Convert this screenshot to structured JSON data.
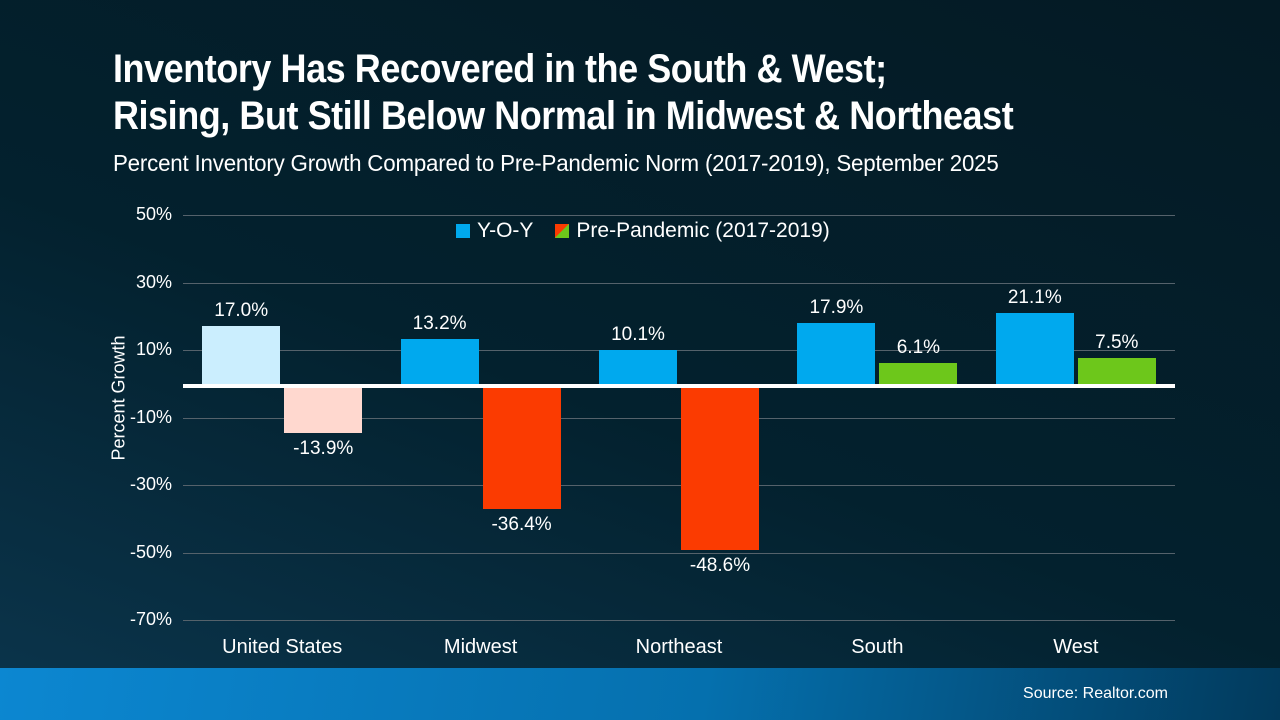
{
  "title": {
    "line1": "Inventory Has Recovered in the South & West;",
    "line2": "Rising, But Still Below Normal in Midwest & Northeast"
  },
  "subtitle": "Percent Inventory Growth Compared to Pre-Pandemic Norm (2017-2019), September 2025",
  "legend": [
    {
      "label": "Y-O-Y",
      "marker": "solid",
      "color": "#00a9ee"
    },
    {
      "label": "Pre-Pandemic (2017-2019)",
      "marker": "split",
      "color_top_left": "#fb3b01",
      "color_bottom_right": "#6dc71b"
    }
  ],
  "footer": {
    "source": "Source: Realtor.com"
  },
  "colors": {
    "background_top": "#041a24",
    "background_bottom": "#0d3a54",
    "gridline": "#55626b",
    "zero_line": "#ffffff",
    "footer_left": "#0c87d1",
    "footer_right": "#023a5c",
    "yoy_blue": "#00a9ee",
    "yoy_blue_muted": "#cbeefe",
    "prepandemic_red": "#fb3b01",
    "prepandemic_red_muted": "#ffd8cf",
    "prepandemic_green": "#6dc71b"
  },
  "chart_data": {
    "type": "bar",
    "title": "Inventory Has Recovered in the South & West; Rising, But Still Below Normal in Midwest & Northeast",
    "subtitle": "Percent Inventory Growth Compared to Pre-Pandemic Norm (2017-2019), September 2025",
    "categories": [
      "United States",
      "Midwest",
      "Northeast",
      "South",
      "West"
    ],
    "series": [
      {
        "name": "Y-O-Y",
        "values": [
          17.0,
          13.2,
          10.1,
          17.9,
          21.1
        ]
      },
      {
        "name": "Pre-Pandemic (2017-2019)",
        "values": [
          -13.9,
          -36.4,
          -48.6,
          6.1,
          7.5
        ]
      }
    ],
    "value_labels": [
      [
        "17.0%",
        "13.2%",
        "10.1%",
        "17.9%",
        "21.1%"
      ],
      [
        "-13.9%",
        "-36.4%",
        "-48.6%",
        "6.1%",
        "7.5%"
      ]
    ],
    "bar_colors": [
      [
        "#cbeefe",
        "#00a9ee",
        "#00a9ee",
        "#00a9ee",
        "#00a9ee"
      ],
      [
        "#ffd8cf",
        "#fb3b01",
        "#fb3b01",
        "#6dc71b",
        "#6dc71b"
      ]
    ],
    "xlabel": "",
    "ylabel": "Percent Growth",
    "ylim": [
      -70,
      50
    ],
    "yticks": [
      50,
      30,
      10,
      -10,
      -30,
      -50,
      -70
    ],
    "ytick_labels": [
      "50%",
      "30%",
      "10%",
      "-10%",
      "-30%",
      "-50%",
      "-70%"
    ],
    "grid": "horizontal",
    "legend_position": "top-center"
  }
}
